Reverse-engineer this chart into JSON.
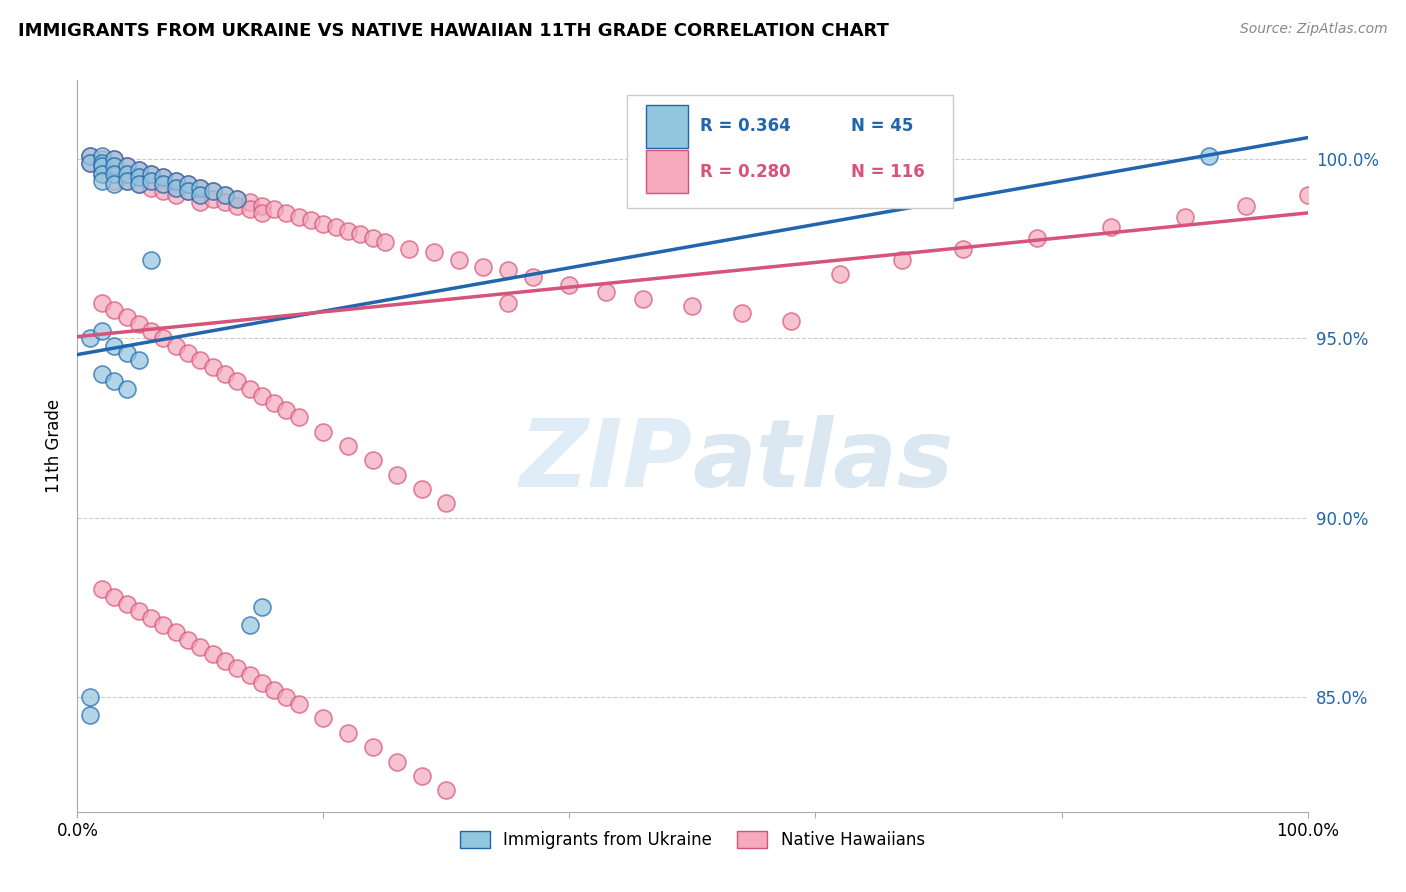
{
  "title": "IMMIGRANTS FROM UKRAINE VS NATIVE HAWAIIAN 11TH GRADE CORRELATION CHART",
  "source": "Source: ZipAtlas.com",
  "ylabel": "11th Grade",
  "right_yticks": [
    "85.0%",
    "90.0%",
    "95.0%",
    "100.0%"
  ],
  "right_ytick_vals": [
    0.85,
    0.9,
    0.95,
    1.0
  ],
  "xlim": [
    0.0,
    1.0
  ],
  "ylim": [
    0.818,
    1.022
  ],
  "legend_r1": "R = 0.364",
  "legend_n1": "N = 45",
  "legend_r2": "R = 0.280",
  "legend_n2": "N = 116",
  "blue_color": "#92c5de",
  "pink_color": "#f4a9bc",
  "line_blue": "#2166ac",
  "line_pink": "#d6537a",
  "uk_trend_x": [
    0.0,
    1.0
  ],
  "uk_trend_y": [
    0.9455,
    1.006
  ],
  "hw_trend_x": [
    0.0,
    1.0
  ],
  "hw_trend_y": [
    0.9505,
    0.985
  ],
  "ukraine_x": [
    0.01,
    0.01,
    0.02,
    0.02,
    0.02,
    0.02,
    0.02,
    0.03,
    0.03,
    0.03,
    0.03,
    0.04,
    0.04,
    0.04,
    0.05,
    0.05,
    0.05,
    0.06,
    0.06,
    0.07,
    0.07,
    0.08,
    0.08,
    0.09,
    0.09,
    0.1,
    0.1,
    0.11,
    0.12,
    0.13,
    0.01,
    0.02,
    0.03,
    0.04,
    0.05,
    0.02,
    0.03,
    0.04,
    0.62,
    0.92,
    0.01,
    0.01,
    0.14,
    0.15,
    0.06
  ],
  "ukraine_y": [
    1.001,
    0.999,
    1.001,
    0.999,
    0.998,
    0.996,
    0.994,
    1.0,
    0.998,
    0.996,
    0.993,
    0.998,
    0.996,
    0.994,
    0.997,
    0.995,
    0.993,
    0.996,
    0.994,
    0.995,
    0.993,
    0.994,
    0.992,
    0.993,
    0.991,
    0.992,
    0.99,
    0.991,
    0.99,
    0.989,
    0.95,
    0.952,
    0.948,
    0.946,
    0.944,
    0.94,
    0.938,
    0.936,
    1.001,
    1.001,
    0.85,
    0.845,
    0.87,
    0.875,
    0.972
  ],
  "hawaii_x": [
    0.01,
    0.01,
    0.02,
    0.02,
    0.02,
    0.03,
    0.03,
    0.03,
    0.03,
    0.04,
    0.04,
    0.04,
    0.05,
    0.05,
    0.05,
    0.06,
    0.06,
    0.06,
    0.07,
    0.07,
    0.07,
    0.08,
    0.08,
    0.08,
    0.09,
    0.09,
    0.1,
    0.1,
    0.1,
    0.11,
    0.11,
    0.12,
    0.12,
    0.13,
    0.13,
    0.14,
    0.14,
    0.15,
    0.15,
    0.16,
    0.17,
    0.18,
    0.19,
    0.2,
    0.21,
    0.22,
    0.23,
    0.24,
    0.25,
    0.27,
    0.29,
    0.31,
    0.33,
    0.35,
    0.37,
    0.4,
    0.43,
    0.46,
    0.5,
    0.54,
    0.58,
    0.62,
    0.67,
    0.72,
    0.78,
    0.84,
    0.9,
    0.95,
    1.0,
    0.02,
    0.03,
    0.04,
    0.05,
    0.06,
    0.07,
    0.08,
    0.09,
    0.1,
    0.11,
    0.12,
    0.13,
    0.14,
    0.15,
    0.16,
    0.17,
    0.18,
    0.2,
    0.22,
    0.24,
    0.26,
    0.28,
    0.3,
    0.02,
    0.03,
    0.04,
    0.05,
    0.06,
    0.07,
    0.08,
    0.09,
    0.1,
    0.11,
    0.12,
    0.13,
    0.14,
    0.15,
    0.16,
    0.17,
    0.18,
    0.2,
    0.22,
    0.24,
    0.26,
    0.28,
    0.3,
    0.35
  ],
  "hawaii_y": [
    1.001,
    0.999,
    1.0,
    0.998,
    0.996,
    1.0,
    0.998,
    0.996,
    0.994,
    0.998,
    0.996,
    0.994,
    0.997,
    0.995,
    0.993,
    0.996,
    0.994,
    0.992,
    0.995,
    0.993,
    0.991,
    0.994,
    0.992,
    0.99,
    0.993,
    0.991,
    0.992,
    0.99,
    0.988,
    0.991,
    0.989,
    0.99,
    0.988,
    0.989,
    0.987,
    0.988,
    0.986,
    0.987,
    0.985,
    0.986,
    0.985,
    0.984,
    0.983,
    0.982,
    0.981,
    0.98,
    0.979,
    0.978,
    0.977,
    0.975,
    0.974,
    0.972,
    0.97,
    0.969,
    0.967,
    0.965,
    0.963,
    0.961,
    0.959,
    0.957,
    0.955,
    0.968,
    0.972,
    0.975,
    0.978,
    0.981,
    0.984,
    0.987,
    0.99,
    0.96,
    0.958,
    0.956,
    0.954,
    0.952,
    0.95,
    0.948,
    0.946,
    0.944,
    0.942,
    0.94,
    0.938,
    0.936,
    0.934,
    0.932,
    0.93,
    0.928,
    0.924,
    0.92,
    0.916,
    0.912,
    0.908,
    0.904,
    0.88,
    0.878,
    0.876,
    0.874,
    0.872,
    0.87,
    0.868,
    0.866,
    0.864,
    0.862,
    0.86,
    0.858,
    0.856,
    0.854,
    0.852,
    0.85,
    0.848,
    0.844,
    0.84,
    0.836,
    0.832,
    0.828,
    0.824,
    0.96
  ]
}
